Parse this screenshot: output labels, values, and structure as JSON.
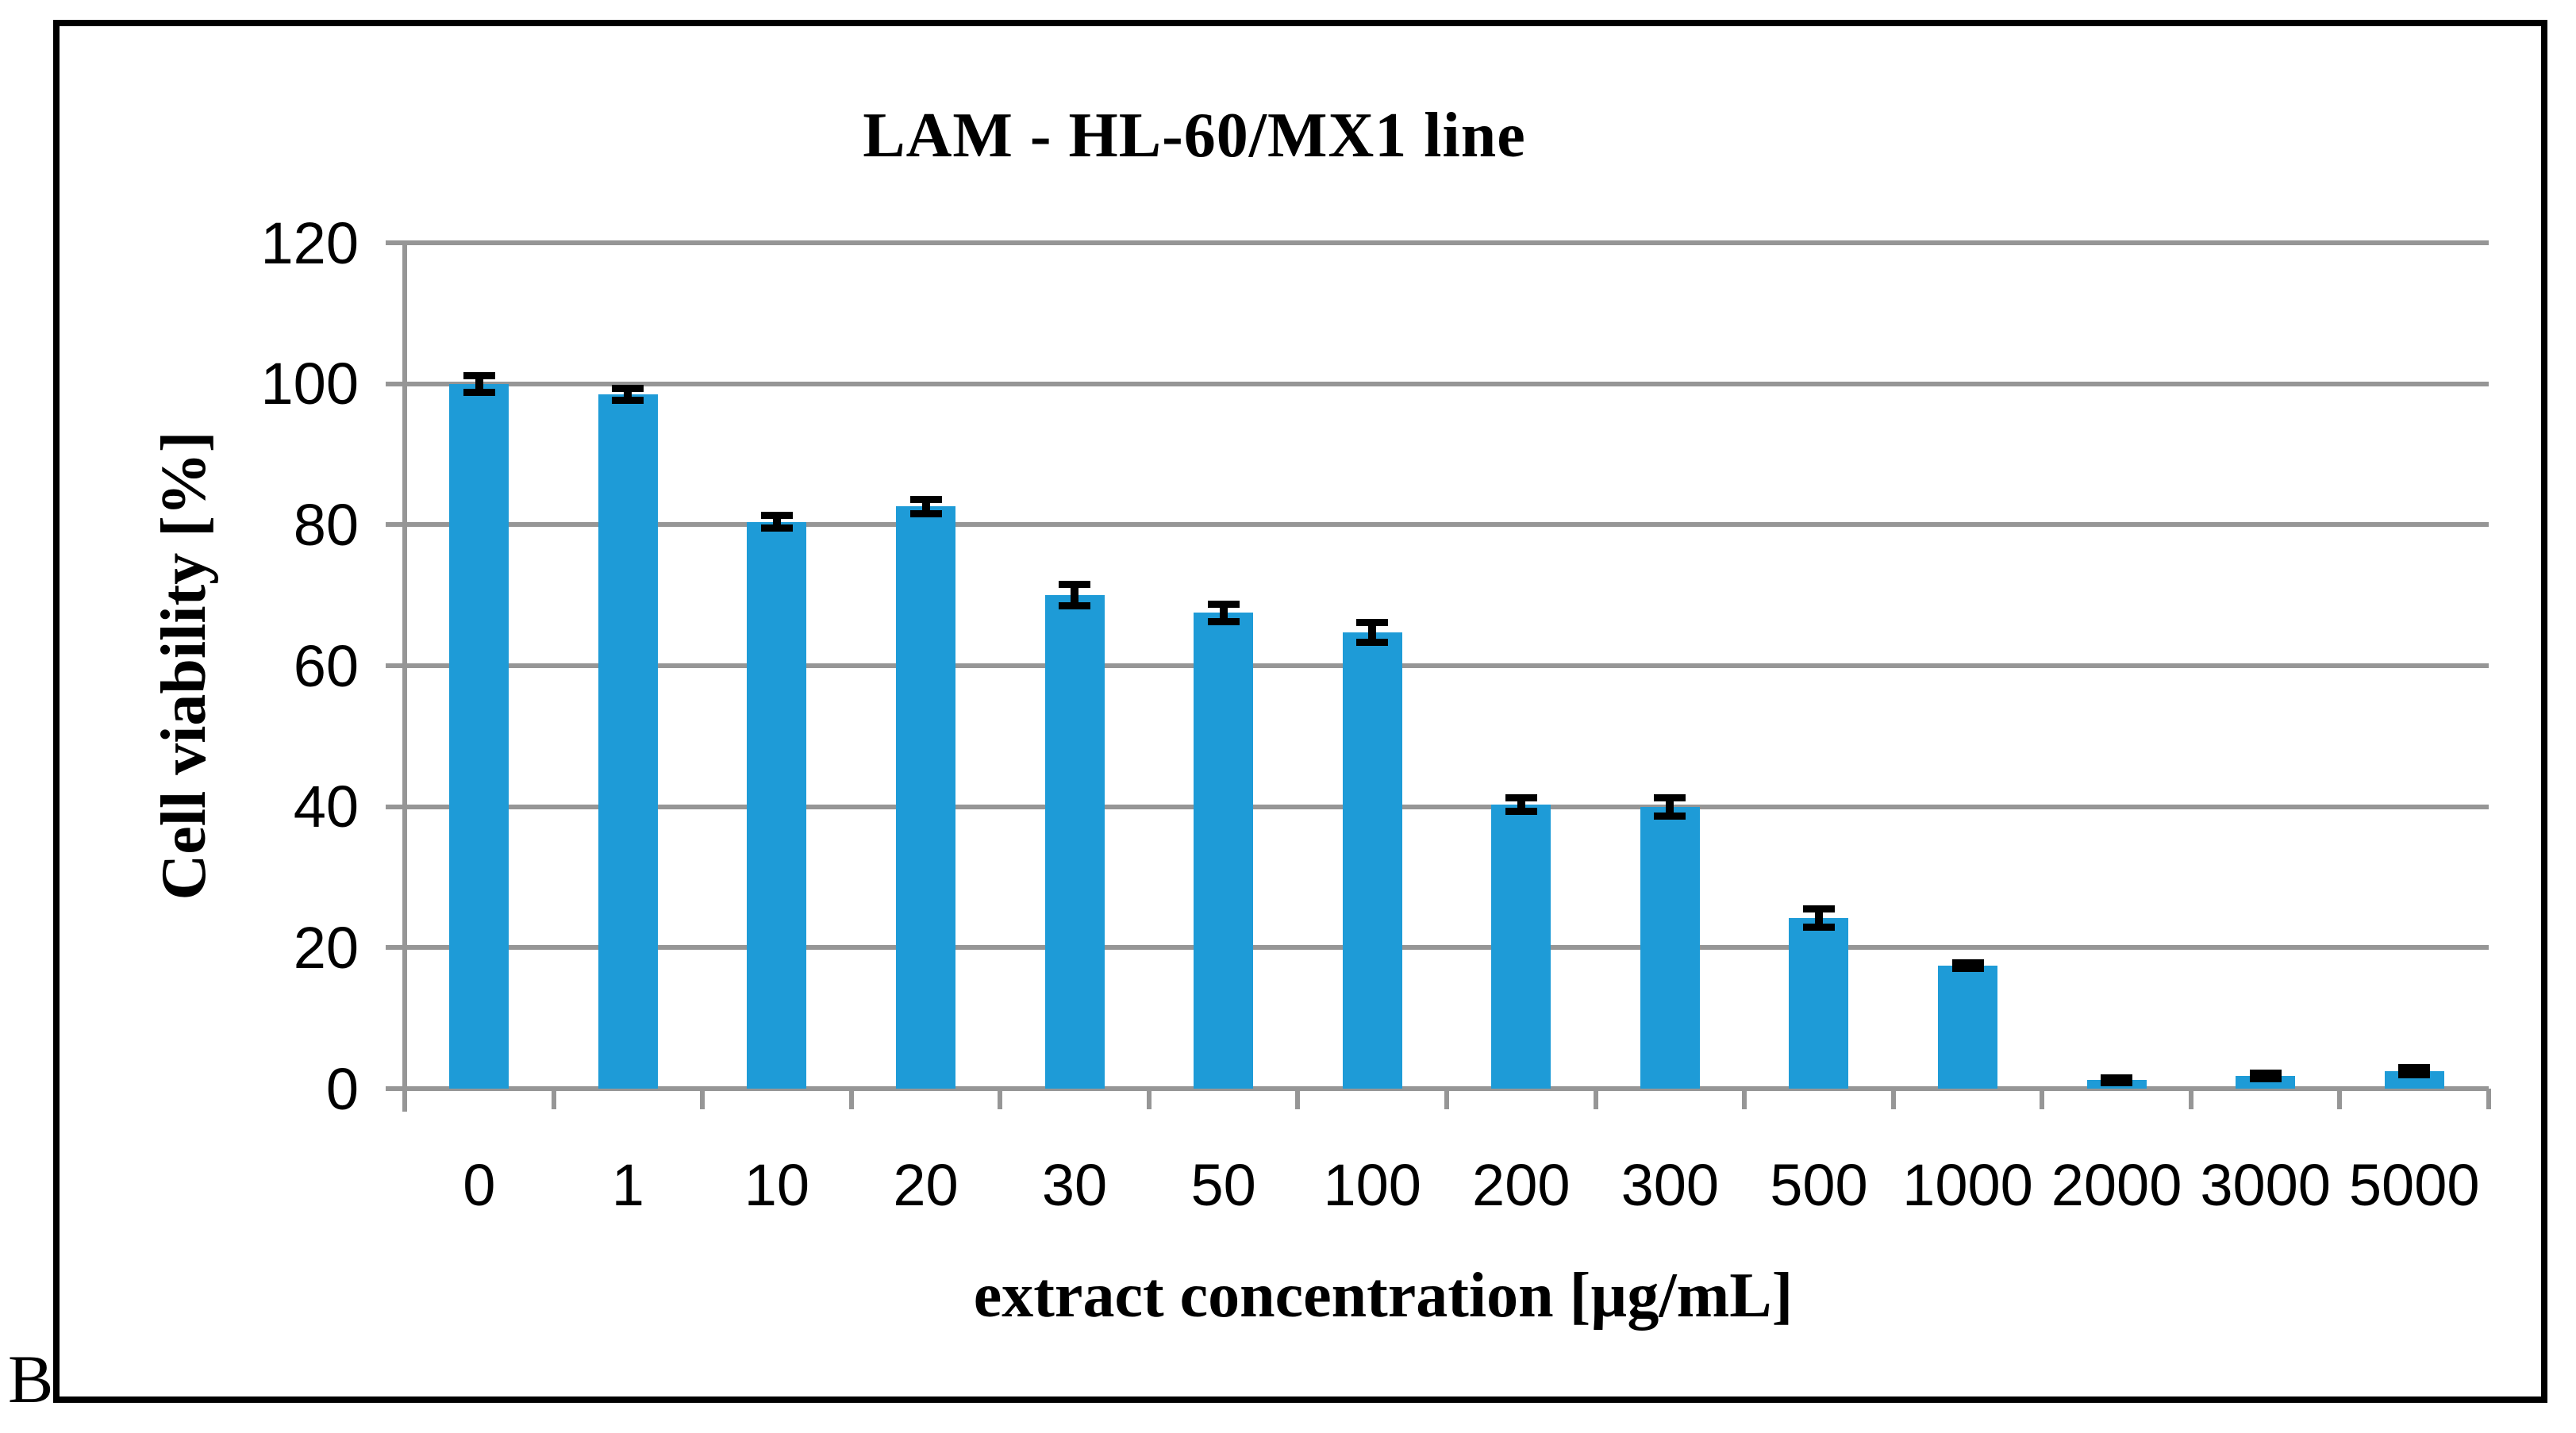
{
  "panel_label": "B",
  "chart_data": {
    "type": "bar",
    "title": "LAM - HL-60/MX1 line",
    "xlabel": "extract concentration [µg/mL]",
    "ylabel": "Cell viability [%]",
    "categories": [
      "0",
      "1",
      "10",
      "20",
      "30",
      "50",
      "100",
      "200",
      "300",
      "500",
      "1000",
      "2000",
      "3000",
      "5000"
    ],
    "values": [
      100.0,
      98.5,
      80.4,
      82.6,
      70.0,
      67.5,
      64.7,
      40.3,
      40.0,
      24.2,
      17.4,
      1.2,
      1.8,
      2.5
    ],
    "errors": [
      1.2,
      0.8,
      0.9,
      1.0,
      1.5,
      1.2,
      1.4,
      1.0,
      1.3,
      1.3,
      0.4,
      0.3,
      0.4,
      0.5
    ],
    "ylim": [
      0,
      120
    ],
    "ytick_step": 20,
    "ytick_labels": [
      "0",
      "20",
      "40",
      "60",
      "80",
      "100",
      "120"
    ],
    "grid": true,
    "legend": "none",
    "bar_color": "#1E9BD7",
    "grid_color": "#969696",
    "error_color": "#000000"
  }
}
